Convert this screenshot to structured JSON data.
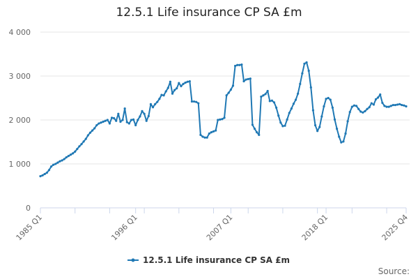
{
  "chart_data": {
    "type": "line",
    "title": "12.5.1 Life insurance CP SA £m",
    "xlabel": "",
    "ylabel": "",
    "ylim": [
      0,
      4000
    ],
    "yticks": [
      {
        "value": 0,
        "label": "0"
      },
      {
        "value": 1000,
        "label": "1 000"
      },
      {
        "value": 2000,
        "label": "2 000"
      },
      {
        "value": 3000,
        "label": "3 000"
      },
      {
        "value": 4000,
        "label": "4 000"
      }
    ],
    "xticks": [
      "1985 Q1",
      "1996 Q1",
      "2007 Q1",
      "2018 Q1",
      "2025 Q4"
    ],
    "grid": true,
    "legend": "bottom",
    "color": "#1f78b4",
    "series": [
      {
        "name": "12.5.1 Life insurance CP SA £m",
        "start": "1985 Q1",
        "values": [
          720,
          740,
          770,
          800,
          860,
          940,
          980,
          1000,
          1030,
          1060,
          1080,
          1110,
          1150,
          1180,
          1210,
          1240,
          1280,
          1340,
          1400,
          1450,
          1510,
          1570,
          1650,
          1710,
          1760,
          1810,
          1880,
          1920,
          1940,
          1960,
          1980,
          2000,
          1920,
          2050,
          2040,
          1980,
          2140,
          1960,
          2000,
          2260,
          1950,
          1920,
          2000,
          2010,
          1880,
          2000,
          2080,
          2200,
          2140,
          1980,
          2090,
          2360,
          2290,
          2360,
          2410,
          2480,
          2570,
          2560,
          2650,
          2730,
          2870,
          2600,
          2680,
          2720,
          2840,
          2770,
          2820,
          2850,
          2870,
          2880,
          2420,
          2420,
          2410,
          2380,
          1660,
          1620,
          1600,
          1600,
          1690,
          1720,
          1740,
          1760,
          2000,
          2010,
          2020,
          2050,
          2560,
          2620,
          2690,
          2780,
          3230,
          3250,
          3250,
          3260,
          2880,
          2920,
          2930,
          2940,
          1890,
          1800,
          1720,
          1660,
          2530,
          2560,
          2590,
          2660,
          2430,
          2440,
          2400,
          2280,
          2100,
          1940,
          1860,
          1870,
          2010,
          2160,
          2260,
          2370,
          2460,
          2600,
          2820,
          3060,
          3280,
          3310,
          3120,
          2740,
          2220,
          1880,
          1750,
          1840,
          2080,
          2310,
          2480,
          2500,
          2460,
          2280,
          2010,
          1800,
          1620,
          1490,
          1510,
          1690,
          1970,
          2180,
          2300,
          2330,
          2320,
          2250,
          2190,
          2170,
          2200,
          2250,
          2290,
          2380,
          2350,
          2470,
          2510,
          2580,
          2390,
          2320,
          2300,
          2300,
          2320,
          2340,
          2340,
          2350,
          2360,
          2340,
          2330,
          2310
        ]
      }
    ]
  },
  "source_label": "Source:"
}
